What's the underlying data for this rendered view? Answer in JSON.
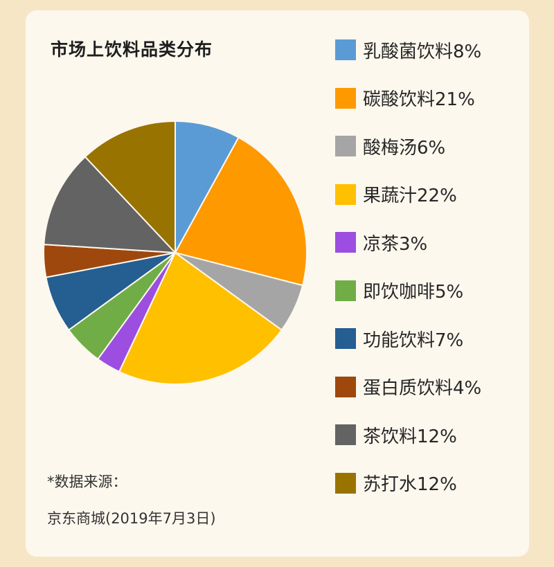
{
  "chart_data": {
    "type": "pie",
    "title": "市场上饮料品类分布",
    "slices": [
      {
        "label": "乳酸菌饮料",
        "value": 8,
        "legend": "乳酸菌饮料8%",
        "color": "#5b9bd5"
      },
      {
        "label": "碳酸饮料",
        "value": 21,
        "legend": "碳酸饮料21%",
        "color": "#ff9900"
      },
      {
        "label": "酸梅汤",
        "value": 6,
        "legend": "酸梅汤6%",
        "color": "#a5a5a5"
      },
      {
        "label": "果蔬汁",
        "value": 22,
        "legend": "果蔬汁22%",
        "color": "#ffc000"
      },
      {
        "label": "凉茶",
        "value": 3,
        "legend": "凉茶3%",
        "color": "#9c4ee0"
      },
      {
        "label": "即饮咖啡",
        "value": 5,
        "legend": "即饮咖啡5%",
        "color": "#70ad47"
      },
      {
        "label": "功能饮料",
        "value": 7,
        "legend": "功能饮料7%",
        "color": "#255e91"
      },
      {
        "label": "蛋白质饮料",
        "value": 4,
        "legend": "蛋白质饮料4%",
        "color": "#9e480e"
      },
      {
        "label": "茶饮料",
        "value": 12,
        "legend": "茶饮料12%",
        "color": "#636363"
      },
      {
        "label": "苏打水",
        "value": 12,
        "legend": "苏打水12%",
        "color": "#997300"
      }
    ],
    "legend_position": "right"
  },
  "footnote": {
    "line1": "*数据来源：",
    "line2": "京东商城(2019年7月3日)"
  }
}
